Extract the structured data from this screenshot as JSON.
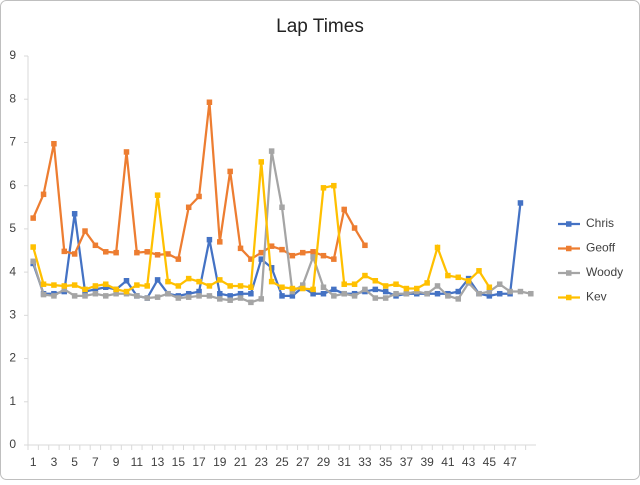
{
  "chart_data": {
    "type": "line",
    "title": "Lap Times",
    "categories": [
      "1",
      null,
      "3",
      null,
      "5",
      null,
      "7",
      null,
      "9",
      null,
      "11",
      null,
      "13",
      null,
      "15",
      null,
      "17",
      null,
      "19",
      null,
      "21",
      null,
      "23",
      null,
      "25",
      null,
      "27",
      null,
      "29",
      null,
      "31",
      null,
      "33",
      null,
      "35",
      null,
      "37",
      null,
      "39",
      null,
      "41",
      null,
      "43",
      null,
      "45",
      null,
      "47",
      null,
      null
    ],
    "series": [
      {
        "name": "Chris",
        "color": "#4472c4",
        "values": [
          4.2,
          3.5,
          3.5,
          3.55,
          5.35,
          3.55,
          3.6,
          3.65,
          3.6,
          3.8,
          3.45,
          3.4,
          3.82,
          3.5,
          3.45,
          3.5,
          3.55,
          4.75,
          3.5,
          3.45,
          3.5,
          3.5,
          4.3,
          4.1,
          3.45,
          3.45,
          3.65,
          3.5,
          3.5,
          3.6,
          3.5,
          3.5,
          3.55,
          3.6,
          3.55,
          3.45,
          3.5,
          3.5,
          3.5,
          3.5,
          3.5,
          3.55,
          3.85,
          3.5,
          3.45,
          3.5,
          3.5,
          5.6,
          null
        ]
      },
      {
        "name": "Geoff",
        "color": "#ed7d31",
        "values": [
          5.25,
          5.8,
          6.97,
          4.48,
          4.42,
          4.95,
          4.62,
          4.47,
          4.45,
          6.78,
          4.45,
          4.47,
          4.4,
          4.42,
          4.3,
          5.5,
          5.75,
          7.93,
          4.7,
          6.33,
          4.55,
          4.3,
          4.45,
          4.6,
          4.52,
          4.38,
          4.45,
          4.47,
          4.38,
          4.3,
          5.45,
          5.02,
          4.62,
          null,
          null,
          null,
          null,
          null,
          null,
          null,
          null,
          null,
          null,
          null,
          null,
          null,
          null,
          null,
          null
        ]
      },
      {
        "name": "Woody",
        "color": "#a5a5a5",
        "values": [
          4.25,
          3.48,
          3.45,
          3.6,
          3.45,
          3.45,
          3.5,
          3.45,
          3.5,
          3.5,
          3.45,
          3.4,
          3.42,
          3.5,
          3.4,
          3.42,
          3.45,
          3.45,
          3.38,
          3.35,
          3.4,
          3.3,
          3.38,
          6.8,
          5.5,
          3.55,
          3.7,
          4.35,
          3.65,
          3.45,
          3.5,
          3.45,
          3.6,
          3.4,
          3.4,
          3.5,
          3.5,
          3.55,
          3.5,
          3.68,
          3.45,
          3.38,
          3.75,
          3.5,
          3.55,
          3.72,
          3.55,
          3.55,
          3.5
        ]
      },
      {
        "name": "Kev",
        "color": "#ffc000",
        "values": [
          4.58,
          3.72,
          3.7,
          3.68,
          3.7,
          3.6,
          3.68,
          3.72,
          3.6,
          3.55,
          3.7,
          3.68,
          5.78,
          3.78,
          3.68,
          3.85,
          3.78,
          3.68,
          3.82,
          3.68,
          3.68,
          3.65,
          6.55,
          3.78,
          3.65,
          3.62,
          3.62,
          3.6,
          5.95,
          6.0,
          3.72,
          3.72,
          3.92,
          3.8,
          3.68,
          3.72,
          3.62,
          3.62,
          3.75,
          4.57,
          3.92,
          3.88,
          3.8,
          4.03,
          3.65,
          null,
          null,
          null,
          null
        ]
      }
    ],
    "ylim": [
      0,
      9
    ],
    "yticks": [
      0,
      1,
      2,
      3,
      4,
      5,
      6,
      7,
      8,
      9
    ],
    "grid": false,
    "legend": "right"
  }
}
